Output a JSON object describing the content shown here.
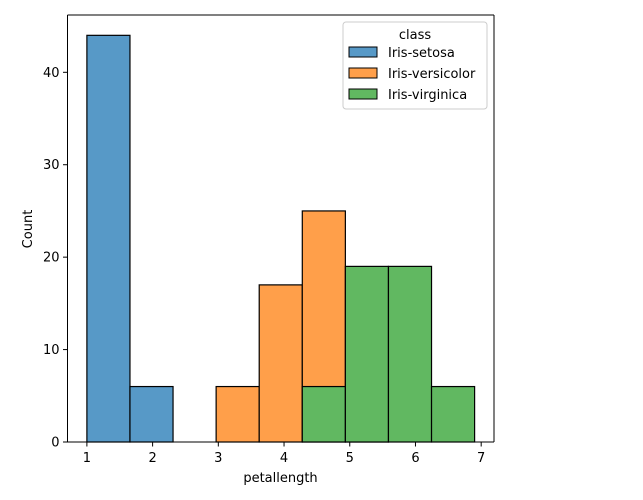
{
  "chart_data": {
    "type": "bar",
    "subtype": "stacked-histogram",
    "xlabel": "petallength",
    "ylabel": "Count",
    "xlim": [
      0.705,
      7.195
    ],
    "ylim": [
      0,
      46.2
    ],
    "xticks": [
      1,
      2,
      3,
      4,
      5,
      6,
      7
    ],
    "yticks": [
      0,
      10,
      20,
      30,
      40
    ],
    "bin_edges": [
      1.0,
      1.6556,
      2.3111,
      2.9667,
      3.6222,
      4.2778,
      4.9333,
      5.5889,
      6.2444,
      6.9
    ],
    "grid": false,
    "legend": {
      "title": "class",
      "placement": "top-right"
    },
    "series": [
      {
        "name": "Iris-setosa",
        "color": "#1f77b4",
        "values": [
          44,
          6,
          0,
          0,
          0,
          0,
          0,
          0,
          0
        ]
      },
      {
        "name": "Iris-versicolor",
        "color": "#ff7f0e",
        "values": [
          0,
          0,
          0,
          6,
          17,
          25,
          2,
          0,
          0
        ]
      },
      {
        "name": "Iris-virginica",
        "color": "#2ca02c",
        "values": [
          0,
          0,
          0,
          0,
          0,
          6,
          19,
          19,
          6
        ]
      }
    ],
    "stacking": "layer"
  }
}
